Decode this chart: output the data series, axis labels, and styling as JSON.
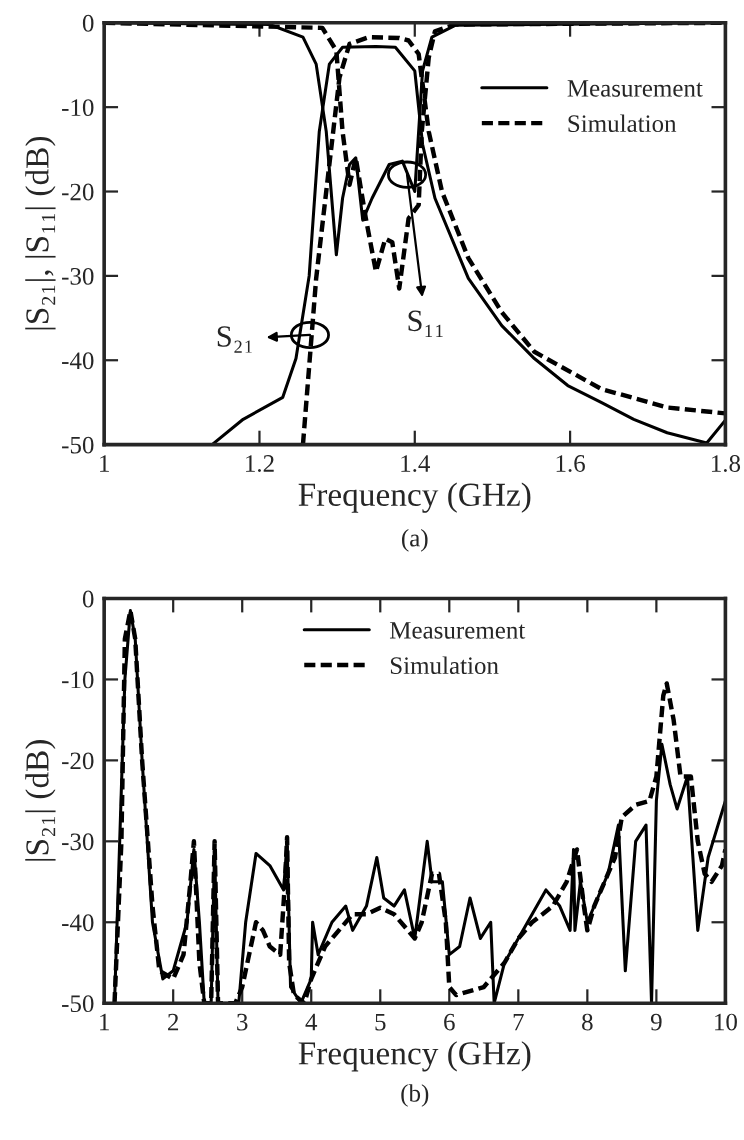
{
  "chart_data": [
    {
      "type": "line",
      "xlabel": "Frequency (GHz)",
      "ylabel": "|S₂₁|, |S₁₁| (dB)",
      "xlim": [
        1,
        1.8
      ],
      "xticks": [
        1,
        1.2,
        1.4,
        1.6,
        1.8
      ],
      "ylim": [
        -50,
        0
      ],
      "yticks": [
        -50,
        -40,
        -30,
        -20,
        -10,
        0
      ],
      "legend": "top right",
      "grid": false,
      "annotations": [
        {
          "text": "S₂₁",
          "x": 1.265,
          "y": -37
        },
        {
          "text": "S₁₁",
          "x": 1.39,
          "y": -18
        },
        "(a)"
      ],
      "series": [
        {
          "name": "Measurement",
          "color": "#000000",
          "line_style": "solid",
          "x": [
            1.139,
            1.179,
            1.23,
            1.247,
            1.264,
            1.277,
            1.29,
            1.307,
            1.35,
            1.375,
            1.4,
            1.41,
            1.426,
            1.469,
            1.512,
            1.554,
            1.597,
            1.64,
            1.682,
            1.725,
            1.776,
            1.8
          ],
          "values": [
            -50,
            -47,
            -44.4,
            -39.8,
            -30,
            -12.9,
            -4.9,
            -2.9,
            -2.8,
            -2.9,
            -5.7,
            -14.4,
            -20.8,
            -30.3,
            -35.9,
            -39.8,
            -43,
            -45,
            -47,
            -48.6,
            -49.8,
            -47.1
          ]
        },
        {
          "name": "Simulation",
          "color": "#000000",
          "line_style": "dashed",
          "x": [
            1.256,
            1.273,
            1.29,
            1.303,
            1.316,
            1.341,
            1.38,
            1.392,
            1.405,
            1.418,
            1.435,
            1.469,
            1.512,
            1.554,
            1.64,
            1.725,
            1.8
          ],
          "values": [
            -50,
            -30.3,
            -16.8,
            -6.5,
            -2.5,
            -1.7,
            -1.8,
            -2.1,
            -3.7,
            -12.9,
            -20,
            -27.9,
            -34.3,
            -39,
            -43.4,
            -45.6,
            -46.3
          ]
        },
        {
          "color": "#000000",
          "line_style": "solid",
          "x": [
            1.0,
            1.213,
            1.256,
            1.273,
            1.286,
            1.299,
            1.307,
            1.316,
            1.324,
            1.333,
            1.345,
            1.367,
            1.384,
            1.4,
            1.41,
            1.422,
            1.452,
            1.8
          ],
          "values": [
            0,
            -0.2,
            -1.7,
            -4.9,
            -12.9,
            -27.5,
            -20.8,
            -16.8,
            -16,
            -23.4,
            -20.8,
            -16.8,
            -16.4,
            -20,
            -5.7,
            -1.7,
            -0.3,
            0
          ]
        },
        {
          "color": "#000000",
          "line_style": "dashed",
          "x": [
            1.0,
            1.281,
            1.299,
            1.307,
            1.316,
            1.324,
            1.337,
            1.35,
            1.362,
            1.371,
            1.38,
            1.392,
            1.405,
            1.409,
            1.418,
            1.426,
            1.452,
            1.8
          ],
          "values": [
            0,
            -0.6,
            -3.3,
            -12.9,
            -19.2,
            -16,
            -23.2,
            -29.5,
            -25.6,
            -26,
            -31.5,
            -23.2,
            -21.6,
            -12.9,
            -4.1,
            -1,
            -0.2,
            0
          ]
        }
      ]
    },
    {
      "type": "line",
      "xlabel": "Frequency (GHz)",
      "ylabel": "|S₂₁| (dB)",
      "xlim": [
        1,
        10
      ],
      "xticks": [
        1,
        2,
        3,
        4,
        5,
        6,
        7,
        8,
        9,
        10
      ],
      "ylim": [
        -50,
        0
      ],
      "yticks": [
        -50,
        -40,
        -30,
        -20,
        -10,
        0
      ],
      "legend": "top",
      "grid": false,
      "annotations": [
        "(b)"
      ],
      "series": [
        {
          "name": "Measurement",
          "color": "#000000",
          "line_style": "solid",
          "x": [
            1.15,
            1.3,
            1.38,
            1.45,
            1.55,
            1.7,
            1.85,
            2.0,
            2.1,
            2.2,
            2.3,
            2.38,
            2.45,
            2.55,
            2.6,
            2.65,
            2.95,
            3.05,
            3.2,
            3.4,
            3.6,
            3.65,
            3.7,
            3.85,
            4.0,
            4.02,
            4.1,
            4.3,
            4.5,
            4.6,
            4.8,
            4.95,
            5.05,
            5.2,
            5.35,
            5.5,
            5.68,
            5.75,
            5.9,
            6.0,
            6.15,
            6.3,
            6.45,
            6.6,
            6.65,
            6.8,
            7.0,
            7.2,
            7.4,
            7.6,
            7.75,
            7.8,
            7.82,
            7.9,
            8.0,
            8.3,
            8.45,
            8.55,
            8.7,
            8.85,
            8.93,
            9.0,
            9.08,
            9.2,
            9.3,
            9.45,
            9.6,
            9.75,
            10.0
          ],
          "values": [
            -50,
            -10,
            -1.5,
            -5,
            -20,
            -40,
            -47,
            -46,
            -43,
            -40,
            -31,
            -40,
            -50,
            -50,
            -31,
            -50,
            -50,
            -40,
            -31.5,
            -33,
            -36,
            -30,
            -48,
            -50,
            -47,
            -40,
            -44,
            -40,
            -38,
            -41,
            -38,
            -32,
            -37,
            -38,
            -36,
            -42,
            -30,
            -35,
            -35,
            -44,
            -43,
            -37,
            -42,
            -40,
            -50,
            -45,
            -42,
            -39,
            -36,
            -38,
            -41,
            -31,
            -41,
            -35,
            -40,
            -34,
            -28,
            -46,
            -30,
            -28,
            -50,
            -25,
            -18,
            -23,
            -26,
            -22,
            -41,
            -32,
            -25
          ]
        },
        {
          "name": "Simulation",
          "color": "#000000",
          "line_style": "dashed",
          "x": [
            1.15,
            1.25,
            1.3,
            1.38,
            1.45,
            1.55,
            1.7,
            1.8,
            2.0,
            2.15,
            2.25,
            2.3,
            2.38,
            2.45,
            2.55,
            2.6,
            2.65,
            2.9,
            3.0,
            3.1,
            3.2,
            3.3,
            3.4,
            3.55,
            3.62,
            3.65,
            3.68,
            3.75,
            3.9,
            4.0,
            4.2,
            4.4,
            4.6,
            4.8,
            5.0,
            5.2,
            5.5,
            5.6,
            5.75,
            5.85,
            5.95,
            6.0,
            6.1,
            6.5,
            6.8,
            7.0,
            7.2,
            7.5,
            7.7,
            7.85,
            7.95,
            8.0,
            8.1,
            8.3,
            8.4,
            8.5,
            8.7,
            8.9,
            9.0,
            9.1,
            9.15,
            9.25,
            9.35,
            9.5,
            9.6,
            9.7,
            9.8,
            9.95,
            10.0
          ],
          "values": [
            -50,
            -30,
            -5,
            -1.5,
            -5,
            -20,
            -38,
            -46,
            -47,
            -44,
            -35,
            -30,
            -45,
            -50,
            -50,
            -30,
            -50,
            -50,
            -48,
            -44,
            -40,
            -41,
            -43,
            -44,
            -35,
            -29.5,
            -45,
            -49,
            -50,
            -47,
            -43,
            -41,
            -39,
            -39,
            -38.2,
            -39,
            -42,
            -40,
            -34,
            -34,
            -40,
            -48,
            -49,
            -48,
            -45,
            -42,
            -40,
            -38,
            -35,
            -31,
            -38,
            -41,
            -38,
            -34,
            -32,
            -27,
            -25.5,
            -25,
            -22,
            -12,
            -10.5,
            -15,
            -22,
            -22,
            -30,
            -34,
            -35,
            -33,
            -31
          ]
        }
      ]
    }
  ]
}
